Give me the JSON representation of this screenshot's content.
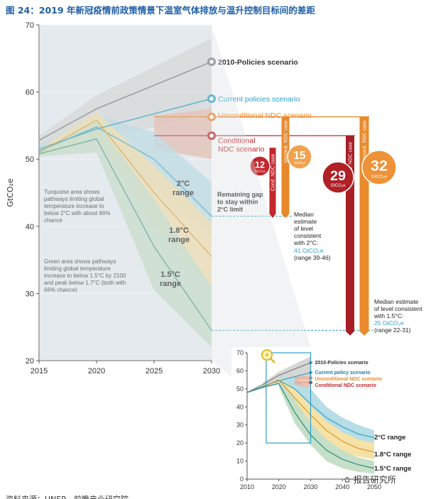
{
  "figure_title": "图 24：2019 年新冠疫情前政策情景下温室气体排放与温升控制目标间的差距",
  "footer_note": "资料来源：UNEP，前瞻产业研究院",
  "watermark": "报告研究所",
  "colors": {
    "policies2010": "#7d7d7d",
    "current": "#2ea1c8",
    "unconditional": "#e8892c",
    "conditional": "#c1272d",
    "turquoise_area": "#b7dde6",
    "green_area": "#c5dfc8",
    "yellow_area": "#f6e1a6",
    "title": "#1f5fa6"
  },
  "chart_data": [
    {
      "type": "line",
      "ylabel": "GtCO₂e",
      "xlabel": "",
      "xlim": [
        2015,
        2030
      ],
      "ylim": [
        20,
        70
      ],
      "x_ticks": [
        2015,
        2020,
        2025,
        2030
      ],
      "y_ticks": [
        20,
        30,
        40,
        50,
        60,
        70
      ],
      "series": [
        {
          "name": "2010-Policies scenario",
          "x": [
            2015,
            2020,
            2030
          ],
          "y": [
            52.8,
            57.5,
            64.5
          ]
        },
        {
          "name": "Current policies scenario",
          "x": [
            2015,
            2020,
            2030
          ],
          "y": [
            51.5,
            54.5,
            59
          ]
        },
        {
          "name": "Unconditional NDC scenario",
          "x": [
            2025,
            2030
          ],
          "y": [
            56.3,
            56.3
          ]
        },
        {
          "name": "Conditional NDC scenario",
          "x": [
            2025,
            2030
          ],
          "y": [
            53.5,
            53.5
          ]
        },
        {
          "name": "2°C range",
          "x": [
            2015,
            2020,
            2025,
            2030
          ],
          "y": [
            51.2,
            54.8,
            50,
            41.5
          ]
        },
        {
          "name": "1.8°C range",
          "x": [
            2015,
            2020,
            2025,
            2030
          ],
          "y": [
            51,
            55.8,
            45,
            35.5
          ]
        },
        {
          "name": "1.5°C range",
          "x": [
            2015,
            2020,
            2025,
            2030
          ],
          "y": [
            50.8,
            53,
            37,
            24.5
          ]
        }
      ],
      "scenario_labels": [
        "2010-Policies scenario",
        "Current policies scenario",
        "Unconditional NDC scenario",
        "Conditional NDC scenario"
      ],
      "range_labels": [
        "2°C\nrange",
        "1.8°C\nrange",
        "1.5°C\nrange"
      ],
      "annotations": {
        "turquoise_note": "Turquoise area shows pathways limiting global temperature increase to below 2°C with about 66% chance",
        "green_note": "Green area shows pathways limiting global temperature increase to below 1.5°C by 2100 and peak below 1.7°C (both with 66% chance)",
        "remaining_gap": "Remaining gap to stay within 2°C limit",
        "median_2c_text": "Median estimate of level consistent with 2°C:",
        "median_2c_value": "41 GtCO₂e",
        "median_2c_range": "(range 39-46)",
        "median_15c_text": "Median estimate of level consistent with 1.5°C:",
        "median_15c_value": "25 GtCO₂e",
        "median_15c_range": "(range 22-31)"
      },
      "gaps": [
        {
          "value": 12,
          "unit": "GtCO₂e",
          "bar_label": "Cond. NDC case",
          "target": "2°C",
          "from": 53.5,
          "to": 41.5
        },
        {
          "value": 15,
          "unit": "GtCO₂e",
          "bar_label": "Uncond. NDC case",
          "target": "2°C",
          "from": 56.3,
          "to": 41.5
        },
        {
          "value": 29,
          "unit": "GtCO₂e",
          "bar_label": "Cond. NDC case",
          "target": "1.5°C",
          "from": 53.5,
          "to": 24.5
        },
        {
          "value": 32,
          "unit": "GtCO₂e",
          "bar_label": "Uncond. NDC case",
          "target": "1.5°C",
          "from": 56.3,
          "to": 24.5
        }
      ]
    },
    {
      "type": "line",
      "title": "",
      "xlim": [
        2010,
        2050
      ],
      "ylim": [
        0,
        70
      ],
      "x_ticks": [
        2010,
        2020,
        2030,
        2040,
        2050
      ],
      "y_ticks": [
        0,
        10,
        20,
        30,
        40,
        50,
        60,
        70
      ],
      "series": [
        {
          "name": "2010-Policies scenario",
          "x": [
            2010,
            2015,
            2020,
            2030
          ],
          "y": [
            48,
            52.5,
            57.5,
            64.5
          ]
        },
        {
          "name": "Current policy scenario",
          "x": [
            2010,
            2015,
            2020,
            2030
          ],
          "y": [
            48,
            51.5,
            54.5,
            59
          ]
        },
        {
          "name": "Unconditional NDC scenario",
          "x": [
            2025,
            2030
          ],
          "y": [
            56,
            56
          ]
        },
        {
          "name": "Conditional NDC scenario",
          "x": [
            2025,
            2030
          ],
          "y": [
            53.5,
            53.5
          ]
        },
        {
          "name": "2°C range",
          "x": [
            2010,
            2015,
            2020,
            2025,
            2030,
            2035,
            2040,
            2045,
            2050
          ],
          "y": [
            48,
            51.2,
            54.8,
            50,
            41.5,
            34,
            29,
            25,
            23
          ]
        },
        {
          "name": "1.8°C range",
          "x": [
            2010,
            2015,
            2020,
            2025,
            2030,
            2035,
            2040,
            2045,
            2050
          ],
          "y": [
            48,
            51,
            55,
            45,
            35.5,
            27,
            21,
            17,
            15
          ]
        },
        {
          "name": "1.5°C range",
          "x": [
            2010,
            2015,
            2020,
            2025,
            2030,
            2035,
            2040,
            2045,
            2050
          ],
          "y": [
            48,
            50.8,
            53,
            37,
            24.5,
            16,
            11,
            8,
            6
          ]
        }
      ],
      "legend_labels": [
        "2010-Policies scenario",
        "Current policy scenario",
        "Unconditional NDC scenario",
        "Conditional NDC scenario"
      ],
      "range_labels": [
        "2°C range",
        "1.8°C range",
        "1.5°C range"
      ]
    }
  ]
}
